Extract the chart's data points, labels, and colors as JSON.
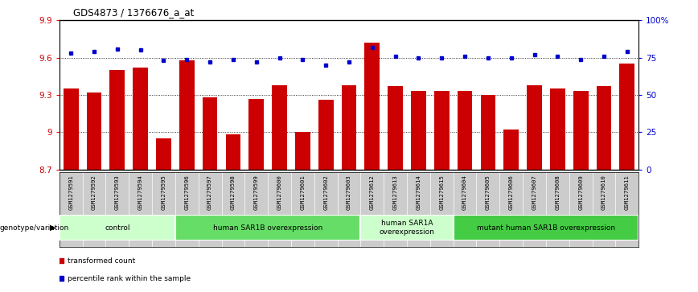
{
  "title": "GDS4873 / 1376676_a_at",
  "samples": [
    "GSM1279591",
    "GSM1279592",
    "GSM1279593",
    "GSM1279594",
    "GSM1279595",
    "GSM1279596",
    "GSM1279597",
    "GSM1279598",
    "GSM1279599",
    "GSM1279600",
    "GSM1279601",
    "GSM1279602",
    "GSM1279603",
    "GSM1279612",
    "GSM1279613",
    "GSM1279614",
    "GSM1279615",
    "GSM1279604",
    "GSM1279605",
    "GSM1279606",
    "GSM1279607",
    "GSM1279608",
    "GSM1279609",
    "GSM1279610",
    "GSM1279611"
  ],
  "bar_values": [
    9.35,
    9.32,
    9.5,
    9.52,
    8.95,
    9.58,
    9.28,
    8.98,
    9.27,
    9.38,
    9.0,
    9.26,
    9.38,
    9.72,
    9.37,
    9.33,
    9.33,
    9.33,
    9.3,
    9.02,
    9.38,
    9.35,
    9.33,
    9.37,
    9.55
  ],
  "percentile_values": [
    78,
    79,
    81,
    80,
    73,
    74,
    72,
    74,
    72,
    75,
    74,
    70,
    72,
    82,
    76,
    75,
    75,
    76,
    75,
    75,
    77,
    76,
    74,
    76,
    79
  ],
  "ylim_left": [
    8.7,
    9.9
  ],
  "ylim_right": [
    0,
    100
  ],
  "bar_color": "#cc0000",
  "dot_color": "#0000cc",
  "groups": [
    {
      "label": "control",
      "start": 0,
      "end": 5,
      "color": "#ccffcc"
    },
    {
      "label": "human SAR1B overexpression",
      "start": 5,
      "end": 13,
      "color": "#66dd66"
    },
    {
      "label": "human SAR1A\noverexpression",
      "start": 13,
      "end": 17,
      "color": "#ccffcc"
    },
    {
      "label": "mutant human SAR1B overexpression",
      "start": 17,
      "end": 25,
      "color": "#44cc44"
    }
  ],
  "xlabel": "genotype/variation",
  "legend_labels": [
    "transformed count",
    "percentile rank within the sample"
  ],
  "legend_colors": [
    "#cc0000",
    "#0000cc"
  ],
  "grid_values": [
    9.0,
    9.3,
    9.6
  ],
  "right_ticks": [
    0,
    25,
    50,
    75,
    100
  ],
  "right_tick_labels": [
    "0",
    "25",
    "50",
    "75",
    "100%"
  ],
  "left_tick_labels": [
    "8.7",
    "9",
    "9.3",
    "9.6",
    "9.9"
  ],
  "left_tick_vals": [
    8.7,
    9.0,
    9.3,
    9.6,
    9.9
  ]
}
